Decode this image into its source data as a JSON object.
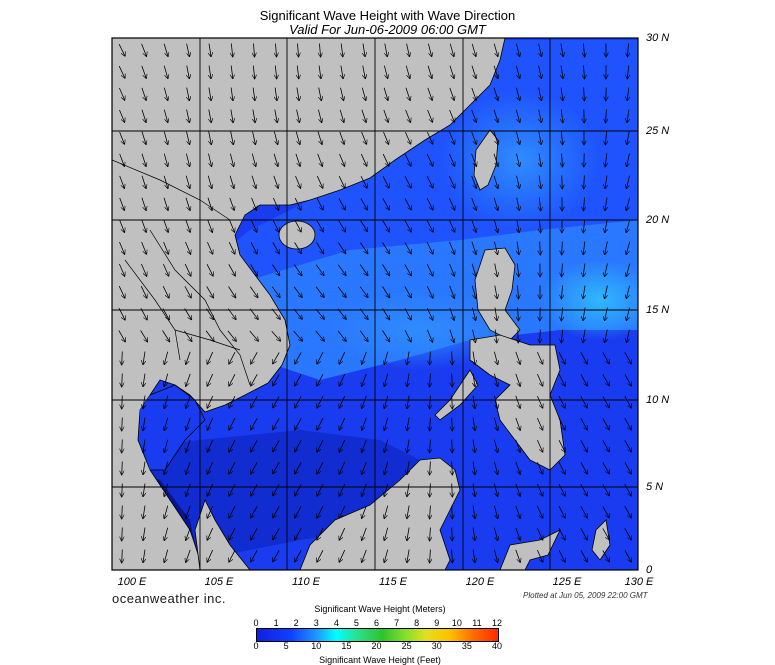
{
  "title": "Significant Wave Height with Wave Direction",
  "subtitle": "Valid For Jun-06-2009 06:00 GMT",
  "latitudes": [
    "30 N",
    "25 N",
    "20 N",
    "15 N",
    "10 N",
    "5 N",
    "0"
  ],
  "longitudes": [
    "100 E",
    "105 E",
    "110 E",
    "115 E",
    "120 E",
    "125 E",
    "130 E"
  ],
  "brand": "oceanweather inc.",
  "plotted": "Plotted at Jun 05, 2009 22:00 GMT",
  "legend": {
    "title_meters": "Significant Wave Height (Meters)",
    "title_feet": "Significant Wave Height (Feet)",
    "meter_ticks": [
      "0",
      "1",
      "2",
      "3",
      "4",
      "5",
      "6",
      "7",
      "8",
      "9",
      "10",
      "11",
      "12"
    ],
    "feet_ticks": [
      "0",
      "5",
      "10",
      "15",
      "20",
      "25",
      "30",
      "35",
      "40"
    ]
  },
  "map_extent": {
    "lon_min": 100,
    "lon_max": 130,
    "lat_min": 0,
    "lat_max": 30
  },
  "colors": {
    "land": "#c0c0c0",
    "water_low": "#1a30e8",
    "water_mid": "#2a6cff",
    "water_high": "#3aa6ff",
    "grid": "#000000"
  },
  "wave_direction_general": "southwest-southeast arrows, mostly pointing south-east to south"
}
